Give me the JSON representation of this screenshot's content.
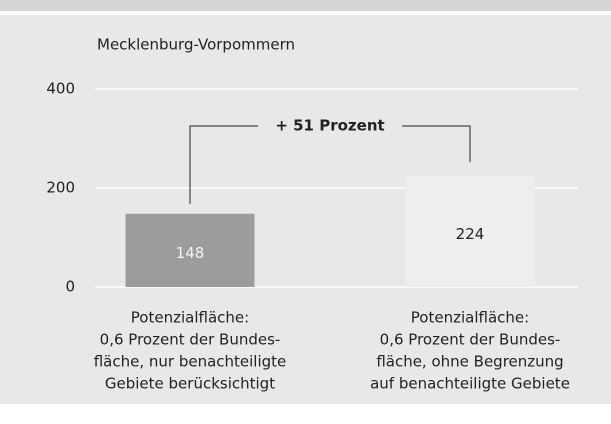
{
  "chart_data": {
    "type": "bar",
    "title": "Mecklenburg-Vorpommern",
    "annotation": "+ 51 Prozent",
    "categories": [
      [
        "Potenzialfläche:",
        "0,6 Prozent der Bundes-",
        "fläche, nur benachteiligte",
        "Gebiete berücksichtigt"
      ],
      [
        "Potenzialfläche:",
        "0,6 Prozent der Bundes-",
        "fläche, ohne Begrenzung",
        "auf benachteiligte Gebiete"
      ]
    ],
    "values": [
      148,
      224
    ],
    "colors": [
      "#9c9c9c",
      "#f0edf0"
    ],
    "ylim": [
      0,
      400
    ],
    "yticks": [
      0,
      200,
      400
    ],
    "grid": true
  }
}
